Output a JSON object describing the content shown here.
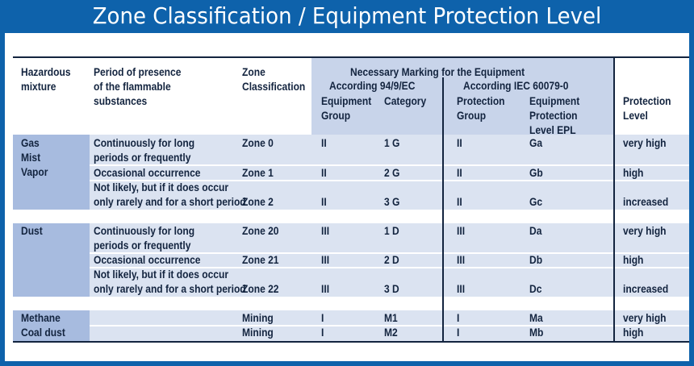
{
  "title": "Zone Classification / Equipment Protection Level",
  "header": {
    "hazardous_mixture": [
      "Hazardous",
      "mixture"
    ],
    "period": [
      "Period of presence",
      "of the flammable",
      "substances"
    ],
    "zone": [
      "Zone",
      "Classification"
    ],
    "necessary_marking": "Necessary Marking for the Equipment",
    "according_94": "According 94/9/EC",
    "according_iec": "According IEC 60079-0",
    "equipment_group": [
      "Equipment",
      "Group"
    ],
    "category": "Category",
    "protection_group": [
      "Protection",
      "Group"
    ],
    "equipment_protection_level": [
      "Equipment",
      "Protection",
      "Level EPL"
    ],
    "protection_level": [
      "Protection",
      "Level"
    ]
  },
  "groups": [
    {
      "mixture": [
        "Gas",
        "Mist",
        "Vapor"
      ],
      "rows": [
        {
          "period": [
            "Continuously for long",
            "periods or frequently"
          ],
          "zone": "Zone 0",
          "eq_group": "II",
          "category": "1 G",
          "prot_group": "II",
          "epl": "Ga",
          "level": "very high"
        },
        {
          "period": [
            "Occasional occurrence"
          ],
          "zone": "Zone 1",
          "eq_group": "II",
          "category": "2 G",
          "prot_group": "II",
          "epl": "Gb",
          "level": "high"
        },
        {
          "period": [
            "Not likely, but if it does occur",
            "only rarely and for a short period"
          ],
          "zone": "Zone 2",
          "eq_group": "II",
          "category": "3 G",
          "prot_group": "II",
          "epl": "Gc",
          "level": "increased"
        }
      ]
    },
    {
      "mixture": [
        "Dust"
      ],
      "rows": [
        {
          "period": [
            "Continuously for long",
            "periods or frequently"
          ],
          "zone": "Zone 20",
          "eq_group": "III",
          "category": "1 D",
          "prot_group": "III",
          "epl": "Da",
          "level": "very high"
        },
        {
          "period": [
            "Occasional occurrence"
          ],
          "zone": "Zone 21",
          "eq_group": "III",
          "category": "2 D",
          "prot_group": "III",
          "epl": "Db",
          "level": "high"
        },
        {
          "period": [
            "Not likely, but if it does occur",
            "only rarely and for a short period"
          ],
          "zone": "Zone 22",
          "eq_group": "III",
          "category": "3 D",
          "prot_group": "III",
          "epl": "Dc",
          "level": "increased"
        }
      ]
    },
    {
      "mixture": [
        "Methane",
        "Coal dust"
      ],
      "rows": [
        {
          "period": [],
          "zone": "Mining",
          "eq_group": "I",
          "category": "M1",
          "prot_group": "I",
          "epl": "Ma",
          "level": "very high"
        },
        {
          "period": [],
          "zone": "Mining",
          "eq_group": "I",
          "category": "M2",
          "prot_group": "I",
          "epl": "Mb",
          "level": "high"
        }
      ]
    }
  ],
  "colors": {
    "frame": "#0e62ab",
    "header_bg": "#c8d4ea",
    "left_col_bg": "#a7bbdf",
    "row_bg": "#dbe3f1",
    "text": "#13243f"
  }
}
